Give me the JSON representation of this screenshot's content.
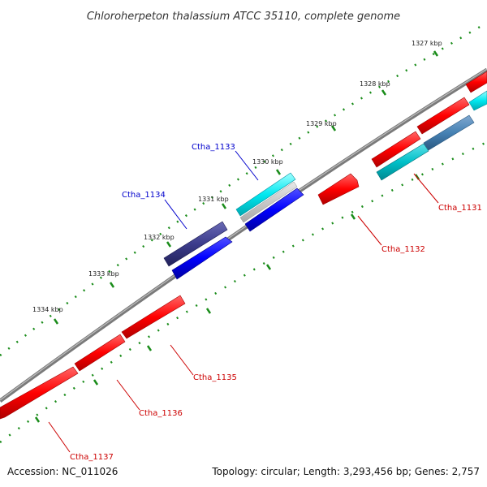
{
  "title": "Chloroherpeton thalassium ATCC 35110, complete genome",
  "footer": {
    "accession": "Accession: NC_011026",
    "summary": "Topology: circular; Length: 3,293,456 bp; Genes: 2,757"
  },
  "scale_labels": [
    "1327 kbp",
    "1328 kbp",
    "1329 kbp",
    "1330 kbp",
    "1331 kbp",
    "1332 kbp",
    "1333 kbp",
    "1334 kbp"
  ],
  "gene_labels": [
    {
      "id": "Ctha_1133",
      "color": "#0000cc"
    },
    {
      "id": "Ctha_1134",
      "color": "#0000cc"
    },
    {
      "id": "Ctha_1131",
      "color": "#cc0000"
    },
    {
      "id": "Ctha_1132",
      "color": "#cc0000"
    },
    {
      "id": "Ctha_1135",
      "color": "#cc0000"
    },
    {
      "id": "Ctha_1136",
      "color": "#cc0000"
    },
    {
      "id": "Ctha_1137",
      "color": "#cc0000"
    }
  ],
  "colors": {
    "backbone": "#808080",
    "reverse_gene": "#ff0000",
    "forward_gene": "#0000ff",
    "forward_gene_dark": "#3c3c8c",
    "cyan_feature": "#00e0f0",
    "steel_feature": "#4682b4",
    "tick": "#1a8c1a"
  }
}
